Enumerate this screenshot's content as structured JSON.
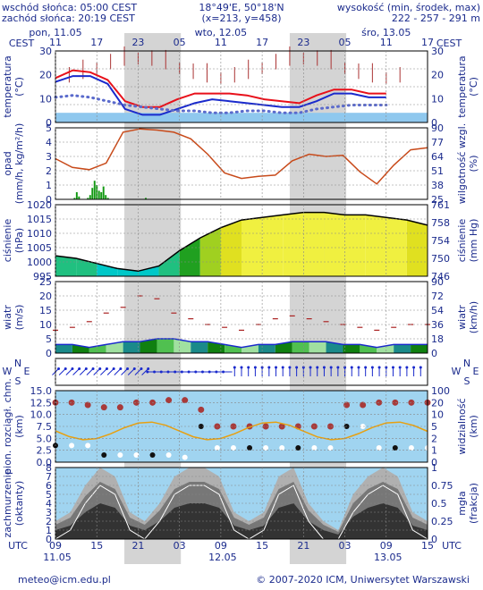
{
  "header": {
    "sunrise": "wschód słońca: 05:00 CEST",
    "sunset": "zachód słońca: 20:19 CEST",
    "coords": "18°49'E, 50°18'N",
    "grid": "(x=213, y=458)",
    "alt_title": "wysokość (min, środek, max)",
    "alt_values": "222 - 257 - 291 m"
  },
  "time_axis": {
    "top_unit": "CEST",
    "bottom_unit": "UTC",
    "days_top": [
      "pon, 11.05",
      "wto, 12.05",
      "śro, 13.05"
    ],
    "hours_top": [
      "11",
      "17",
      "23",
      "05",
      "11",
      "17",
      "23",
      "05",
      "11",
      "17"
    ],
    "hours_bottom": [
      "09",
      "15",
      "21",
      "03",
      "09",
      "15",
      "21",
      "03",
      "09",
      "15"
    ],
    "days_bottom": [
      "11.05",
      "12.05",
      "13.05"
    ]
  },
  "panels": {
    "temperature": {
      "label": "temperatura",
      "unit": "(°C)",
      "ticks": [
        "30",
        "20",
        "10",
        "0"
      ],
      "right_ticks": [
        "30",
        "20",
        "10",
        "0"
      ]
    },
    "precip": {
      "label": "opad",
      "unit": "(mm/h, kg/m²/h)",
      "ticks": [
        "5",
        "4",
        "3",
        "2",
        "1",
        "0"
      ],
      "right_label": "wilgotność wzgl.",
      "right_unit": "(%)",
      "right_ticks": [
        "90",
        "77",
        "64",
        "51",
        "38",
        "25"
      ]
    },
    "pressure": {
      "label": "ciśnienie",
      "unit": "(hPa)",
      "ticks": [
        "1020",
        "1015",
        "1010",
        "1005",
        "1000",
        "995"
      ],
      "right_label": "ciśnienie",
      "right_unit": "(mm Hg)",
      "right_ticks": [
        "761",
        "758",
        "754",
        "750",
        "746"
      ]
    },
    "wind": {
      "label": "wiatr",
      "unit": "(m/s)",
      "ticks": [
        "25",
        "20",
        "15",
        "10",
        "5",
        "0"
      ],
      "right_label": "wiatr",
      "right_unit": "(km/h)",
      "right_ticks": [
        "90",
        "72",
        "54",
        "36",
        "18",
        "0"
      ]
    },
    "wind_dir": {
      "left": [
        "W",
        "N",
        "E",
        "S"
      ],
      "right": [
        "W",
        "N",
        "E",
        "S"
      ]
    },
    "cloud_base": {
      "label": "pion. rozciągł. chm.",
      "unit": "(km)",
      "ticks": [
        "15.0",
        "12.5",
        "10.0",
        "7.5",
        "5.0",
        "2.5",
        "0.0"
      ],
      "right_label": "widzialność",
      "right_unit": "(km)",
      "right_ticks": [
        "100",
        "20",
        "10",
        "5",
        "2",
        "1",
        "0"
      ]
    },
    "cloud_cover": {
      "label": "zachmurzenie",
      "unit": "(oktanty)",
      "ticks": [
        "8",
        "7",
        "6",
        "5",
        "4",
        "3",
        "2",
        "1",
        "0"
      ],
      "right_label": "mgła",
      "right_unit": "(frakcja)",
      "right_ticks": [
        "1",
        "0.75",
        "0.5",
        "0.25",
        "0"
      ]
    }
  },
  "footer": {
    "email": "meteo@icm.edu.pl",
    "copyright": "© 2007-2020 ICM, Uniwersytet Warszawski"
  },
  "colors": {
    "axis_text": "#1a2a8c",
    "night_band": "#d4d4d4",
    "temperature": "#e8101a",
    "perceived": "#1a2acc",
    "dew_point": "#5a6acc",
    "precip_bars": "#119911",
    "humidity": "#c84a1a",
    "pressure_line": "#000000",
    "wind_avg": "#1a2acc",
    "wind_gust": "#aa2222",
    "cloud_base_fill": "#a0d4f0",
    "visibility": "#e8a010"
  },
  "chart_data": [
    {
      "type": "line",
      "title": "temperatura",
      "x": [
        11,
        14,
        17,
        20,
        23,
        2,
        5,
        8,
        11,
        14,
        17,
        20,
        23,
        2,
        5,
        8,
        11,
        14,
        17,
        19
      ],
      "series": [
        {
          "values": [
            18,
            22,
            21,
            17,
            6,
            3,
            3,
            7,
            10,
            10,
            10,
            9,
            7,
            6,
            5,
            9,
            12,
            12,
            10,
            10
          ]
        },
        {
          "values": [
            16,
            19,
            19,
            15,
            2,
            -1,
            -1,
            2,
            5,
            7,
            6,
            5,
            4,
            3,
            3,
            6,
            10,
            10,
            8,
            8
          ]
        },
        {
          "values": [
            8,
            9,
            8,
            6,
            4,
            3,
            2,
            1,
            1,
            0,
            0,
            1,
            1,
            0,
            0,
            2,
            3,
            4,
            4,
            4
          ]
        }
      ],
      "ylim": [
        -5,
        32
      ]
    },
    {
      "type": "bar",
      "title": "opad",
      "values": [
        0,
        0,
        0.1,
        0.5,
        0.2,
        0,
        0,
        0,
        0.1,
        0.3,
        0.8,
        1.3,
        1.0,
        0.6,
        0.5,
        0.9,
        0.3,
        0.1,
        0,
        0,
        0,
        0,
        0,
        0,
        0,
        0,
        0,
        0,
        0,
        0,
        0,
        0,
        0,
        0,
        0.1,
        0,
        0,
        0,
        0
      ],
      "series": [
        {
          "name": "wilgotność wzgl.",
          "values": [
            62,
            54,
            52,
            58,
            86,
            89,
            88,
            86,
            80,
            66,
            49,
            44,
            46,
            47,
            60,
            66,
            64,
            65,
            50,
            39,
            56,
            70,
            72
          ]
        }
      ],
      "ylim": [
        0,
        5
      ],
      "y2lim": [
        25,
        90
      ]
    },
    {
      "type": "line",
      "title": "ciśnienie",
      "x": [
        0,
        3,
        6,
        9,
        12,
        15,
        18,
        21,
        24,
        27,
        30,
        33,
        36,
        39,
        42,
        45,
        48,
        51,
        54
      ],
      "values": [
        1001,
        1000,
        998,
        996,
        995,
        997,
        1003,
        1008,
        1012,
        1015,
        1016,
        1017,
        1018,
        1018,
        1017,
        1017,
        1016,
        1015,
        1013
      ],
      "ylim": [
        993,
        1021
      ]
    },
    {
      "type": "line",
      "title": "wiatr",
      "series": [
        {
          "values": [
            3,
            3,
            2,
            3,
            4,
            4,
            5,
            5,
            4,
            4,
            3,
            2,
            3,
            3,
            4,
            4,
            4,
            3,
            3,
            2,
            3,
            3,
            3
          ]
        },
        {
          "values": [
            8,
            9,
            11,
            14,
            16,
            20,
            19,
            14,
            12,
            10,
            9,
            8,
            10,
            12,
            13,
            12,
            11,
            10,
            9,
            8,
            9,
            10,
            10
          ]
        }
      ],
      "ylim": [
        0,
        25
      ]
    },
    {
      "type": "scatter",
      "title": "pion. rozciągł. chm.",
      "series": [
        {
          "values": [
            12.5,
            12.5,
            12.0,
            11.5,
            11.5,
            12.5,
            12.5,
            13.0,
            13.0,
            11.0,
            7.5,
            7.5,
            7.5,
            7.5,
            7.5,
            7.5,
            7.5,
            7.5,
            12.0,
            12.0,
            12.5,
            12.5,
            12.5,
            12.5
          ]
        },
        {
          "values": [
            3.5,
            3.5,
            3.5,
            1.5,
            1.5,
            1.5,
            1.5,
            1.5,
            1.0,
            7.5,
            3.0,
            3.0,
            3.0,
            3.0,
            3.0,
            3.0,
            3.0,
            3.0,
            7.5,
            7.5,
            3.0,
            3.0,
            3.0,
            3.0
          ]
        }
      ],
      "ylim": [
        0,
        15
      ]
    },
    {
      "type": "area",
      "title": "zachmurzenie",
      "values": [
        2,
        3,
        6,
        8,
        7,
        3,
        2,
        4,
        7,
        8,
        8,
        7,
        3,
        2,
        3,
        7,
        8,
        4,
        2,
        1,
        5,
        7,
        8,
        7,
        3,
        2
      ],
      "ylim": [
        0,
        8
      ]
    }
  ]
}
